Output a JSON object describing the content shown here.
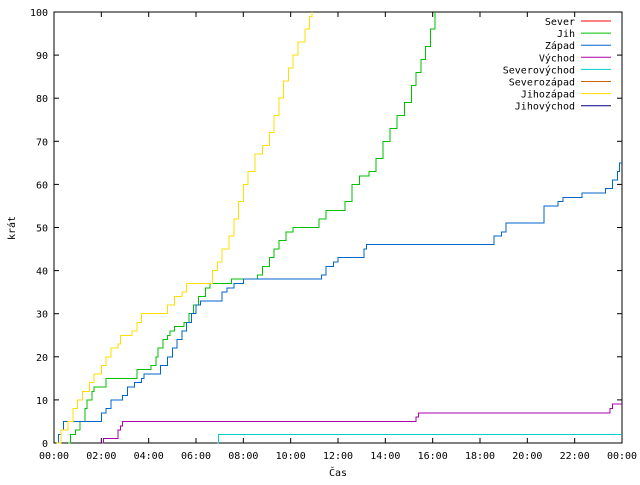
{
  "chart_data": {
    "type": "line",
    "title": "",
    "xlabel": "Čas",
    "ylabel": "krát",
    "xlim": [
      0,
      24
    ],
    "ylim": [
      0,
      100
    ],
    "grid": false,
    "legend_position": "top-right",
    "x_ticks": [
      {
        "value": 0,
        "label": "00:00"
      },
      {
        "value": 2,
        "label": "02:00"
      },
      {
        "value": 4,
        "label": "04:00"
      },
      {
        "value": 6,
        "label": "06:00"
      },
      {
        "value": 8,
        "label": "08:00"
      },
      {
        "value": 10,
        "label": "10:00"
      },
      {
        "value": 12,
        "label": "12:00"
      },
      {
        "value": 14,
        "label": "14:00"
      },
      {
        "value": 16,
        "label": "16:00"
      },
      {
        "value": 18,
        "label": "18:00"
      },
      {
        "value": 20,
        "label": "20:00"
      },
      {
        "value": 22,
        "label": "22:00"
      },
      {
        "value": 24,
        "label": "00:00"
      }
    ],
    "y_ticks": [
      {
        "value": 0,
        "label": "0"
      },
      {
        "value": 10,
        "label": "10"
      },
      {
        "value": 20,
        "label": "20"
      },
      {
        "value": 30,
        "label": "30"
      },
      {
        "value": 40,
        "label": "40"
      },
      {
        "value": 50,
        "label": "50"
      },
      {
        "value": 60,
        "label": "60"
      },
      {
        "value": 70,
        "label": "70"
      },
      {
        "value": 80,
        "label": "80"
      },
      {
        "value": 90,
        "label": "90"
      },
      {
        "value": 100,
        "label": "100"
      }
    ],
    "series": [
      {
        "name": "Sever",
        "color": "#ff0000",
        "points": []
      },
      {
        "name": "Jih",
        "color": "#00c000",
        "points": [
          [
            0.6,
            0
          ],
          [
            0.7,
            2
          ],
          [
            0.9,
            3
          ],
          [
            1.1,
            5
          ],
          [
            1.3,
            8
          ],
          [
            1.4,
            10
          ],
          [
            1.6,
            12
          ],
          [
            1.7,
            13
          ],
          [
            2.0,
            13
          ],
          [
            2.2,
            15
          ],
          [
            3.3,
            15
          ],
          [
            3.5,
            17
          ],
          [
            3.9,
            17
          ],
          [
            4.1,
            18
          ],
          [
            4.3,
            20
          ],
          [
            4.4,
            22
          ],
          [
            4.6,
            24
          ],
          [
            4.8,
            25
          ],
          [
            4.9,
            26
          ],
          [
            5.1,
            27
          ],
          [
            5.5,
            28
          ],
          [
            5.7,
            30
          ],
          [
            5.9,
            32
          ],
          [
            6.1,
            34
          ],
          [
            6.4,
            36
          ],
          [
            6.6,
            37
          ],
          [
            7.3,
            37
          ],
          [
            7.5,
            38
          ],
          [
            8.4,
            38
          ],
          [
            8.6,
            39
          ],
          [
            8.8,
            41
          ],
          [
            9.1,
            43
          ],
          [
            9.3,
            45
          ],
          [
            9.5,
            47
          ],
          [
            9.8,
            49
          ],
          [
            10.1,
            50
          ],
          [
            11.0,
            50
          ],
          [
            11.2,
            52
          ],
          [
            11.5,
            54
          ],
          [
            12.0,
            54
          ],
          [
            12.3,
            56
          ],
          [
            12.6,
            60
          ],
          [
            12.9,
            62
          ],
          [
            13.3,
            63
          ],
          [
            13.6,
            66
          ],
          [
            13.9,
            70
          ],
          [
            14.2,
            73
          ],
          [
            14.5,
            76
          ],
          [
            14.8,
            79
          ],
          [
            15.1,
            83
          ],
          [
            15.3,
            86
          ],
          [
            15.5,
            89
          ],
          [
            15.7,
            92
          ],
          [
            15.9,
            96
          ],
          [
            16.1,
            100
          ]
        ]
      },
      {
        "name": "Západ",
        "color": "#0066cc",
        "points": [
          [
            0.1,
            0
          ],
          [
            0.2,
            2
          ],
          [
            0.3,
            3
          ],
          [
            0.4,
            5
          ],
          [
            1.9,
            5
          ],
          [
            2.0,
            7
          ],
          [
            2.2,
            8
          ],
          [
            2.4,
            10
          ],
          [
            2.9,
            11
          ],
          [
            3.1,
            13
          ],
          [
            3.4,
            14
          ],
          [
            3.7,
            15
          ],
          [
            3.8,
            16
          ],
          [
            4.3,
            16
          ],
          [
            4.5,
            18
          ],
          [
            4.8,
            20
          ],
          [
            5.0,
            22
          ],
          [
            5.2,
            24
          ],
          [
            5.4,
            26
          ],
          [
            5.6,
            28
          ],
          [
            5.8,
            30
          ],
          [
            6.0,
            32
          ],
          [
            6.2,
            33
          ],
          [
            6.9,
            33
          ],
          [
            7.1,
            35
          ],
          [
            7.3,
            36
          ],
          [
            7.6,
            37
          ],
          [
            8.0,
            38
          ],
          [
            11.1,
            38
          ],
          [
            11.3,
            39
          ],
          [
            11.5,
            41
          ],
          [
            11.8,
            42
          ],
          [
            12.0,
            43
          ],
          [
            12.9,
            43
          ],
          [
            13.1,
            45
          ],
          [
            13.2,
            46
          ],
          [
            18.5,
            46
          ],
          [
            18.6,
            48
          ],
          [
            18.9,
            49
          ],
          [
            19.1,
            51
          ],
          [
            20.5,
            51
          ],
          [
            20.7,
            55
          ],
          [
            21.3,
            56
          ],
          [
            21.5,
            57
          ],
          [
            22.3,
            58
          ],
          [
            23.3,
            59
          ],
          [
            23.6,
            61
          ],
          [
            23.8,
            63
          ],
          [
            23.9,
            65
          ],
          [
            24.0,
            65
          ]
        ]
      },
      {
        "name": "Východ",
        "color": "#aa00aa",
        "points": [
          [
            2.0,
            0
          ],
          [
            2.1,
            1
          ],
          [
            2.6,
            1
          ],
          [
            2.7,
            3
          ],
          [
            2.8,
            4
          ],
          [
            2.9,
            5
          ],
          [
            15.2,
            5
          ],
          [
            15.3,
            6
          ],
          [
            15.4,
            7
          ],
          [
            23.4,
            7
          ],
          [
            23.5,
            8
          ],
          [
            23.6,
            9
          ],
          [
            24.0,
            9
          ]
        ]
      },
      {
        "name": "Severovýchod",
        "color": "#00cccc",
        "points": [
          [
            6.9,
            0
          ],
          [
            6.95,
            2
          ],
          [
            24.0,
            2
          ]
        ]
      },
      {
        "name": "Severozápad",
        "color": "#cc6600",
        "points": []
      },
      {
        "name": "Jihozápad",
        "color": "#ffdd00",
        "points": [
          [
            0.1,
            0
          ],
          [
            0.3,
            3
          ],
          [
            0.6,
            5
          ],
          [
            0.8,
            8
          ],
          [
            1.0,
            10
          ],
          [
            1.2,
            12
          ],
          [
            1.5,
            14
          ],
          [
            1.7,
            16
          ],
          [
            2.0,
            18
          ],
          [
            2.2,
            20
          ],
          [
            2.4,
            22
          ],
          [
            2.7,
            23
          ],
          [
            2.8,
            25
          ],
          [
            3.3,
            26
          ],
          [
            3.5,
            28
          ],
          [
            3.7,
            30
          ],
          [
            4.5,
            30
          ],
          [
            4.8,
            32
          ],
          [
            5.1,
            34
          ],
          [
            5.4,
            35
          ],
          [
            5.6,
            37
          ],
          [
            6.5,
            37
          ],
          [
            6.7,
            40
          ],
          [
            6.9,
            42
          ],
          [
            7.1,
            45
          ],
          [
            7.4,
            48
          ],
          [
            7.6,
            52
          ],
          [
            7.8,
            56
          ],
          [
            8.0,
            60
          ],
          [
            8.2,
            63
          ],
          [
            8.5,
            67
          ],
          [
            8.8,
            69
          ],
          [
            9.1,
            72
          ],
          [
            9.3,
            76
          ],
          [
            9.5,
            80
          ],
          [
            9.7,
            84
          ],
          [
            9.9,
            87
          ],
          [
            10.1,
            90
          ],
          [
            10.3,
            93
          ],
          [
            10.6,
            96
          ],
          [
            10.8,
            99
          ],
          [
            10.9,
            100
          ]
        ]
      },
      {
        "name": "Jihovýchod",
        "color": "#000088",
        "points": []
      }
    ]
  }
}
